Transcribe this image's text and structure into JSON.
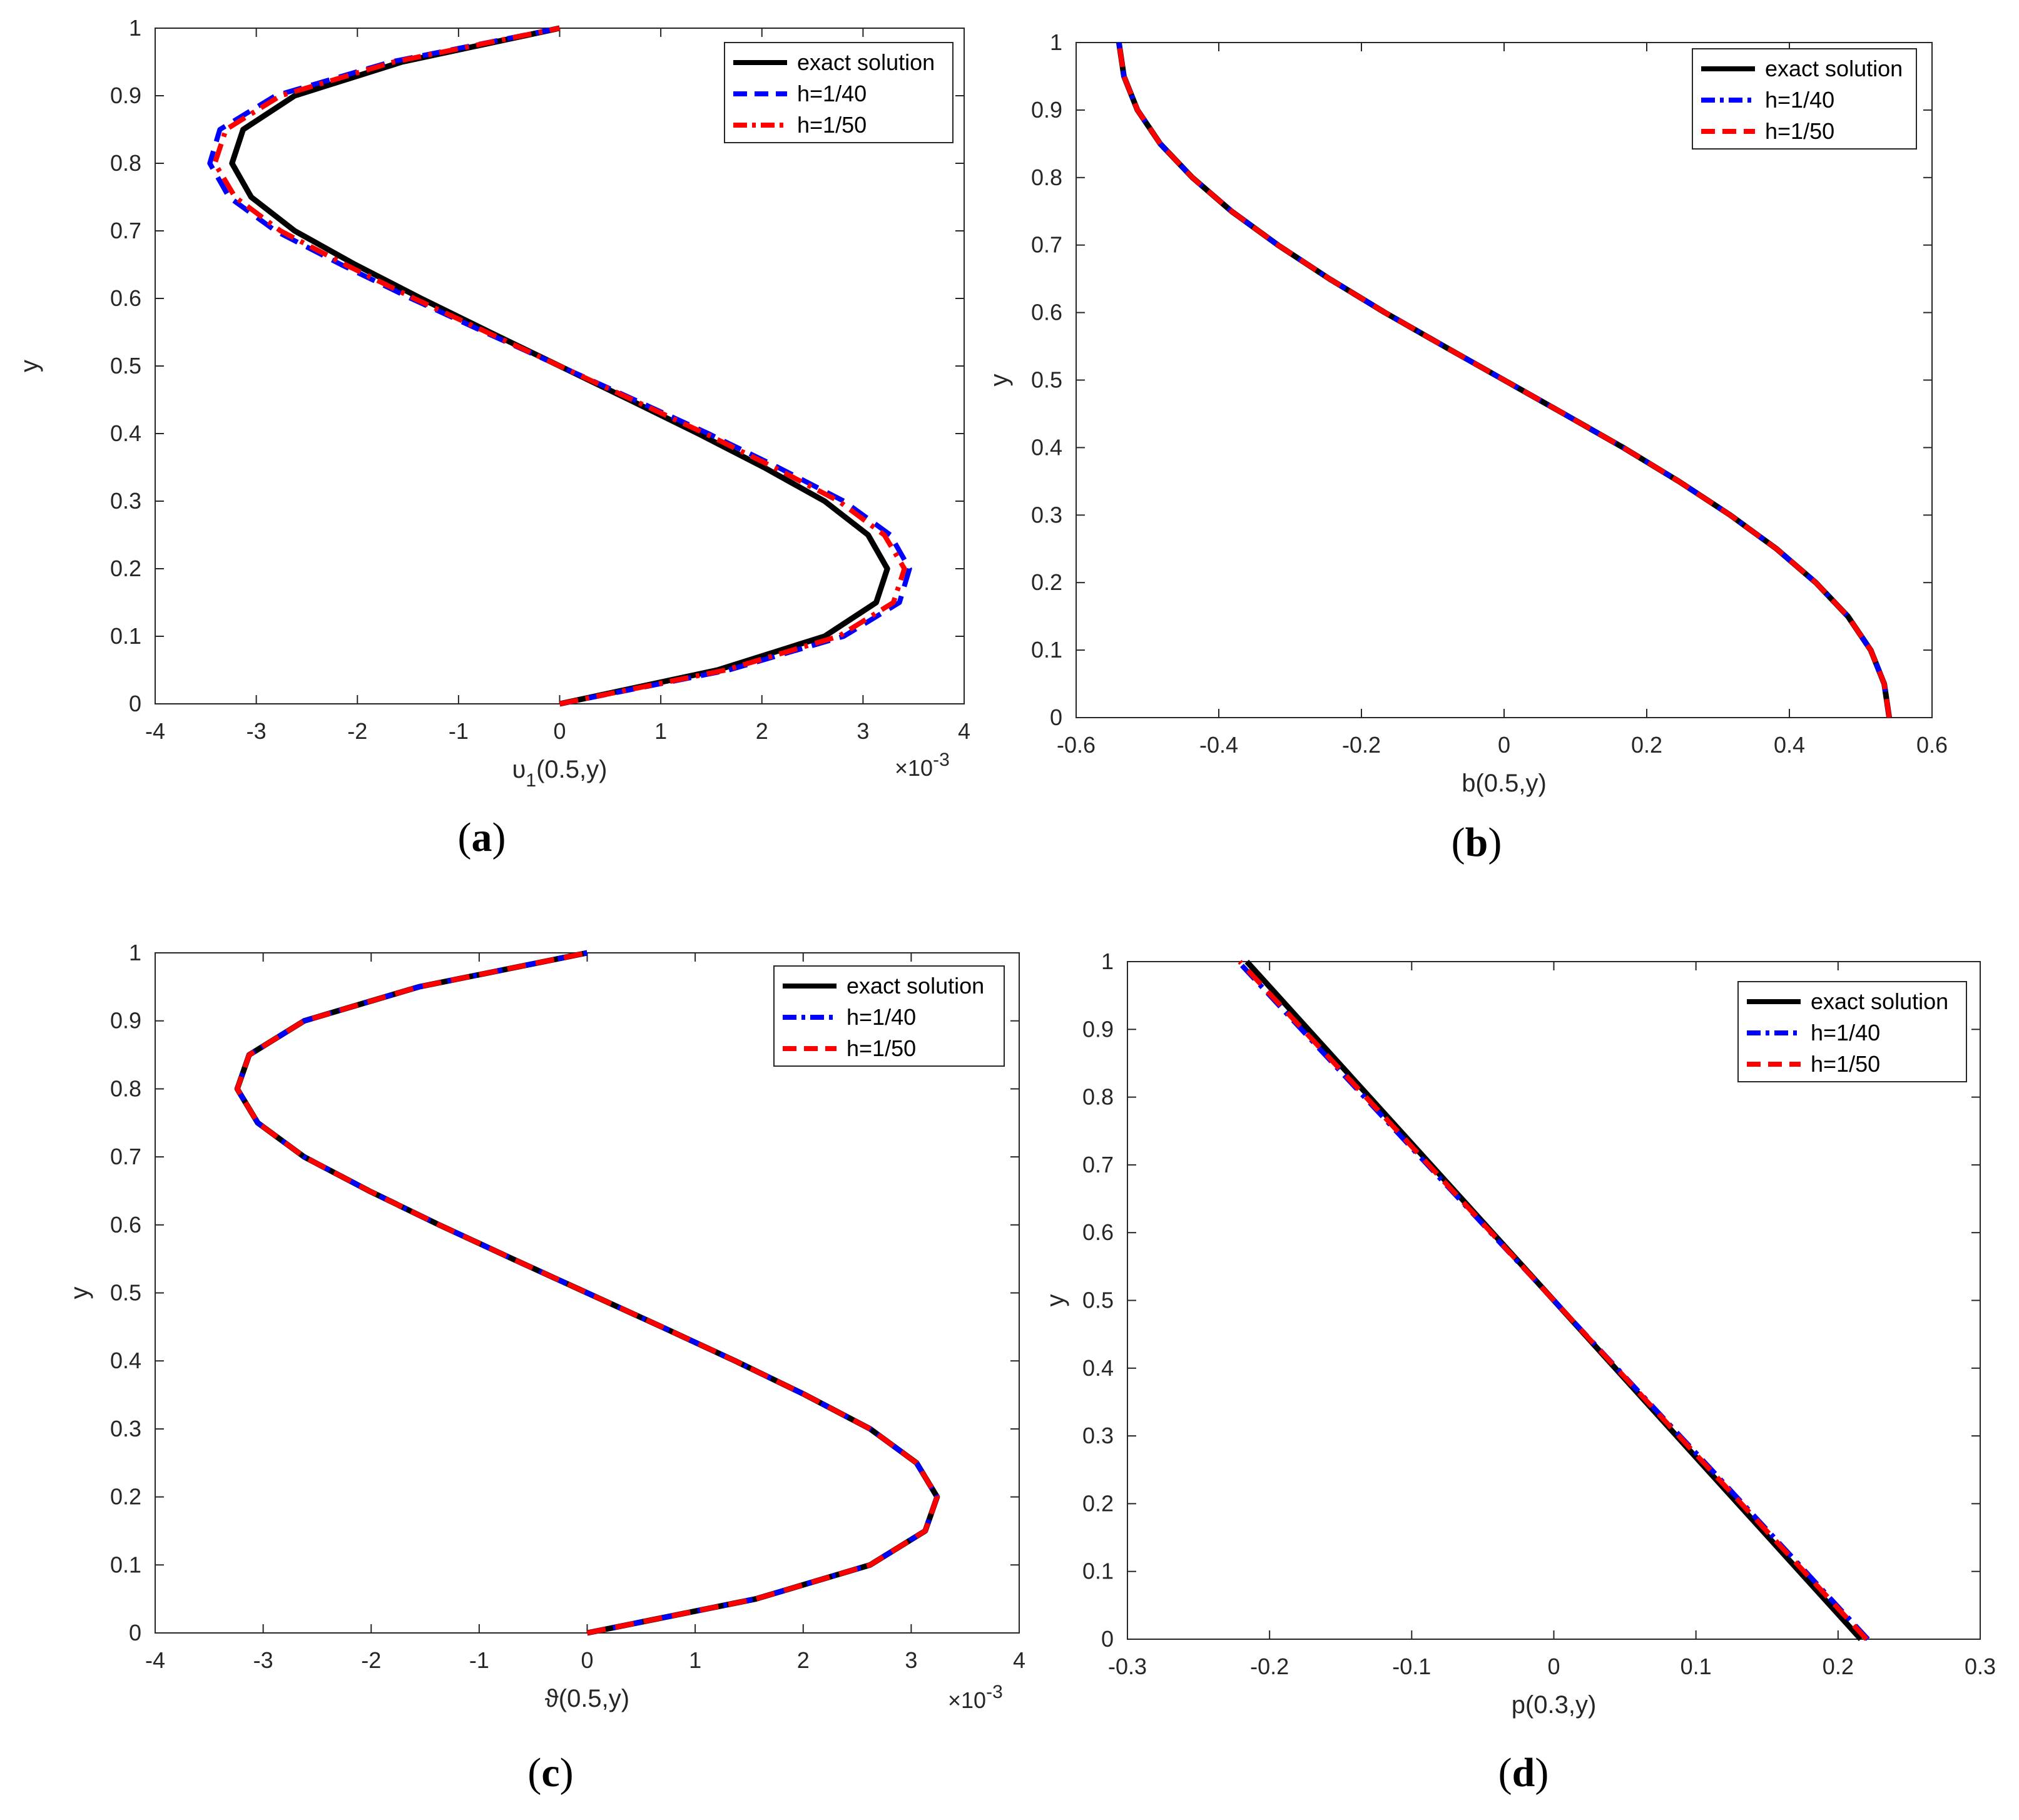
{
  "chart_data": [
    {
      "type": "line",
      "panel": "a",
      "caption": {
        "open": "(",
        "letter": "a",
        "close": ")"
      },
      "xlabel_main": "υ",
      "xlabel_sub": "1",
      "xlabel_rest": "(0.5,y)",
      "ylabel": "y",
      "xlim": [
        -4,
        4
      ],
      "ylim": [
        0,
        1
      ],
      "xticks": [
        "-4",
        "-3",
        "-2",
        "-1",
        "0",
        "1",
        "2",
        "3",
        "4"
      ],
      "yticks": [
        "0",
        "0.1",
        "0.2",
        "0.3",
        "0.4",
        "0.5",
        "0.6",
        "0.7",
        "0.8",
        "0.9",
        "1"
      ],
      "x_multiplier": {
        "base": "×10",
        "exp": "-3"
      },
      "legend_position": "top-right",
      "grid": false,
      "y": [
        0,
        0.05,
        0.1,
        0.15,
        0.2,
        0.25,
        0.3,
        0.35,
        0.4,
        0.45,
        0.5,
        0.55,
        0.6,
        0.65,
        0.7,
        0.75,
        0.8,
        0.85,
        0.9,
        0.95,
        1
      ],
      "series": [
        {
          "name": "exact solution",
          "color": "#000000",
          "dash": "solid",
          "x": [
            0,
            1.56,
            2.62,
            3.13,
            3.24,
            3.05,
            2.62,
            2.02,
            1.37,
            0.69,
            0,
            -0.69,
            -1.37,
            -2.02,
            -2.62,
            -3.05,
            -3.24,
            -3.13,
            -2.62,
            -1.56,
            0
          ]
        },
        {
          "name": "h=1/40",
          "color": "#0000ff",
          "dash": "dashed",
          "x": [
            0,
            1.67,
            2.81,
            3.36,
            3.46,
            3.27,
            2.81,
            2.16,
            1.47,
            0.74,
            0,
            -0.74,
            -1.47,
            -2.16,
            -2.81,
            -3.27,
            -3.46,
            -3.36,
            -2.81,
            -1.67,
            0
          ]
        },
        {
          "name": "h=1/50",
          "color": "#ff0000",
          "dash": "dashdot",
          "x": [
            0,
            1.64,
            2.76,
            3.3,
            3.41,
            3.21,
            2.76,
            2.12,
            1.44,
            0.72,
            0,
            -0.72,
            -1.44,
            -2.12,
            -2.76,
            -3.21,
            -3.41,
            -3.3,
            -2.76,
            -1.64,
            0
          ]
        }
      ]
    },
    {
      "type": "line",
      "panel": "b",
      "caption": {
        "open": "(",
        "letter": "b",
        "close": ")"
      },
      "xlabel_main": "b(0.5,y)",
      "xlabel_sub": "",
      "xlabel_rest": "",
      "ylabel": "y",
      "xlim": [
        -0.6,
        0.6
      ],
      "ylim": [
        0,
        1
      ],
      "xticks": [
        "-0.6",
        "-0.4",
        "-0.2",
        "0",
        "0.2",
        "0.4",
        "0.6"
      ],
      "yticks": [
        "0",
        "0.1",
        "0.2",
        "0.3",
        "0.4",
        "0.5",
        "0.6",
        "0.7",
        "0.8",
        "0.9",
        "1"
      ],
      "legend_position": "top-right",
      "grid": false,
      "y": [
        0,
        0.05,
        0.1,
        0.15,
        0.2,
        0.25,
        0.3,
        0.35,
        0.4,
        0.45,
        0.5,
        0.55,
        0.6,
        0.65,
        0.7,
        0.75,
        0.8,
        0.85,
        0.9,
        0.95,
        1
      ],
      "series": [
        {
          "name": "exact solution",
          "color": "#000000",
          "dash": "solid",
          "x": [
            0.54,
            0.533,
            0.514,
            0.482,
            0.437,
            0.382,
            0.317,
            0.245,
            0.167,
            0.084,
            0,
            -0.084,
            -0.167,
            -0.245,
            -0.317,
            -0.382,
            -0.437,
            -0.482,
            -0.514,
            -0.533,
            -0.54
          ]
        },
        {
          "name": "h=1/40",
          "color": "#0000ff",
          "dash": "dashdot",
          "x": [
            0.54,
            0.533,
            0.514,
            0.482,
            0.437,
            0.382,
            0.317,
            0.245,
            0.167,
            0.084,
            0,
            -0.084,
            -0.167,
            -0.245,
            -0.317,
            -0.382,
            -0.437,
            -0.482,
            -0.514,
            -0.533,
            -0.54
          ]
        },
        {
          "name": "h=1/50",
          "color": "#ff0000",
          "dash": "dashed",
          "x": [
            0.54,
            0.533,
            0.514,
            0.482,
            0.437,
            0.382,
            0.317,
            0.245,
            0.167,
            0.084,
            0,
            -0.084,
            -0.167,
            -0.245,
            -0.317,
            -0.382,
            -0.437,
            -0.482,
            -0.514,
            -0.533,
            -0.54
          ]
        }
      ]
    },
    {
      "type": "line",
      "panel": "c",
      "caption": {
        "open": "(",
        "letter": "c",
        "close": ")"
      },
      "xlabel_main": "ϑ(0.5,y)",
      "xlabel_sub": "",
      "xlabel_rest": "",
      "ylabel": "y",
      "xlim": [
        -4,
        4
      ],
      "ylim": [
        0,
        1
      ],
      "xticks": [
        "-4",
        "-3",
        "-2",
        "-1",
        "0",
        "1",
        "2",
        "3",
        "4"
      ],
      "yticks": [
        "0",
        "0.1",
        "0.2",
        "0.3",
        "0.4",
        "0.5",
        "0.6",
        "0.7",
        "0.8",
        "0.9",
        "1"
      ],
      "x_multiplier": {
        "base": "×10",
        "exp": "-3"
      },
      "legend_position": "top-right",
      "grid": false,
      "y": [
        0,
        0.05,
        0.1,
        0.15,
        0.2,
        0.25,
        0.3,
        0.35,
        0.4,
        0.45,
        0.5,
        0.55,
        0.6,
        0.65,
        0.7,
        0.75,
        0.8,
        0.85,
        0.9,
        0.95,
        1
      ],
      "series": [
        {
          "name": "exact solution",
          "color": "#000000",
          "dash": "solid",
          "x": [
            0,
            1.56,
            2.62,
            3.13,
            3.24,
            3.05,
            2.62,
            2.02,
            1.37,
            0.69,
            0,
            -0.69,
            -1.37,
            -2.02,
            -2.62,
            -3.05,
            -3.24,
            -3.13,
            -2.62,
            -1.56,
            0
          ]
        },
        {
          "name": "h=1/40",
          "color": "#0000ff",
          "dash": "dashdot",
          "x": [
            0,
            1.56,
            2.62,
            3.13,
            3.24,
            3.05,
            2.62,
            2.02,
            1.37,
            0.69,
            0,
            -0.69,
            -1.37,
            -2.02,
            -2.62,
            -3.05,
            -3.24,
            -3.13,
            -2.62,
            -1.56,
            0
          ]
        },
        {
          "name": "h=1/50",
          "color": "#ff0000",
          "dash": "dashed",
          "x": [
            0,
            1.56,
            2.62,
            3.13,
            3.24,
            3.05,
            2.62,
            2.02,
            1.37,
            0.69,
            0,
            -0.69,
            -1.37,
            -2.02,
            -2.62,
            -3.05,
            -3.24,
            -3.13,
            -2.62,
            -1.56,
            0
          ]
        }
      ]
    },
    {
      "type": "line",
      "panel": "d",
      "caption": {
        "open": "(",
        "letter": "d",
        "close": ")"
      },
      "xlabel_main": "p(0.3,y)",
      "xlabel_sub": "",
      "xlabel_rest": "",
      "ylabel": "y",
      "xlim": [
        -0.3,
        0.3
      ],
      "ylim": [
        0,
        1
      ],
      "xticks": [
        "-0.3",
        "-0.2",
        "-0.1",
        "0",
        "0.1",
        "0.2",
        "0.3"
      ],
      "yticks": [
        "0",
        "0.1",
        "0.2",
        "0.3",
        "0.4",
        "0.5",
        "0.6",
        "0.7",
        "0.8",
        "0.9",
        "1"
      ],
      "legend_position": "top-right",
      "grid": false,
      "y": [
        0,
        0.25,
        0.5,
        0.75,
        1
      ],
      "series": [
        {
          "name": "exact solution",
          "color": "#000000",
          "dash": "solid",
          "x": [
            0.216,
            0.108,
            0,
            -0.108,
            -0.216
          ]
        },
        {
          "name": "h=1/40",
          "color": "#0000ff",
          "dash": "dashdot",
          "x": [
            0.221,
            0.111,
            0,
            -0.111,
            -0.222
          ]
        },
        {
          "name": "h=1/50",
          "color": "#ff0000",
          "dash": "dashed",
          "x": [
            0.22,
            0.11,
            0,
            -0.11,
            -0.221
          ]
        }
      ]
    }
  ]
}
